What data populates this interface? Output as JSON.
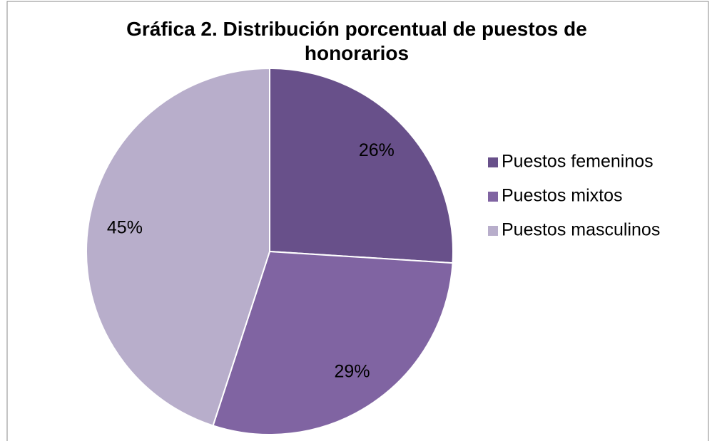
{
  "chart_data": {
    "type": "pie",
    "title": "Gráfica 2. Distribución porcentual de puestos de honorarios",
    "categories": [
      "Puestos femeninos",
      "Puestos mixtos",
      "Puestos masculinos"
    ],
    "values": [
      26,
      29,
      45
    ],
    "value_labels": [
      "26%",
      "29%",
      "45%"
    ],
    "colors": [
      "#68508a",
      "#8064a2",
      "#b8aecb"
    ],
    "legend": "right"
  }
}
